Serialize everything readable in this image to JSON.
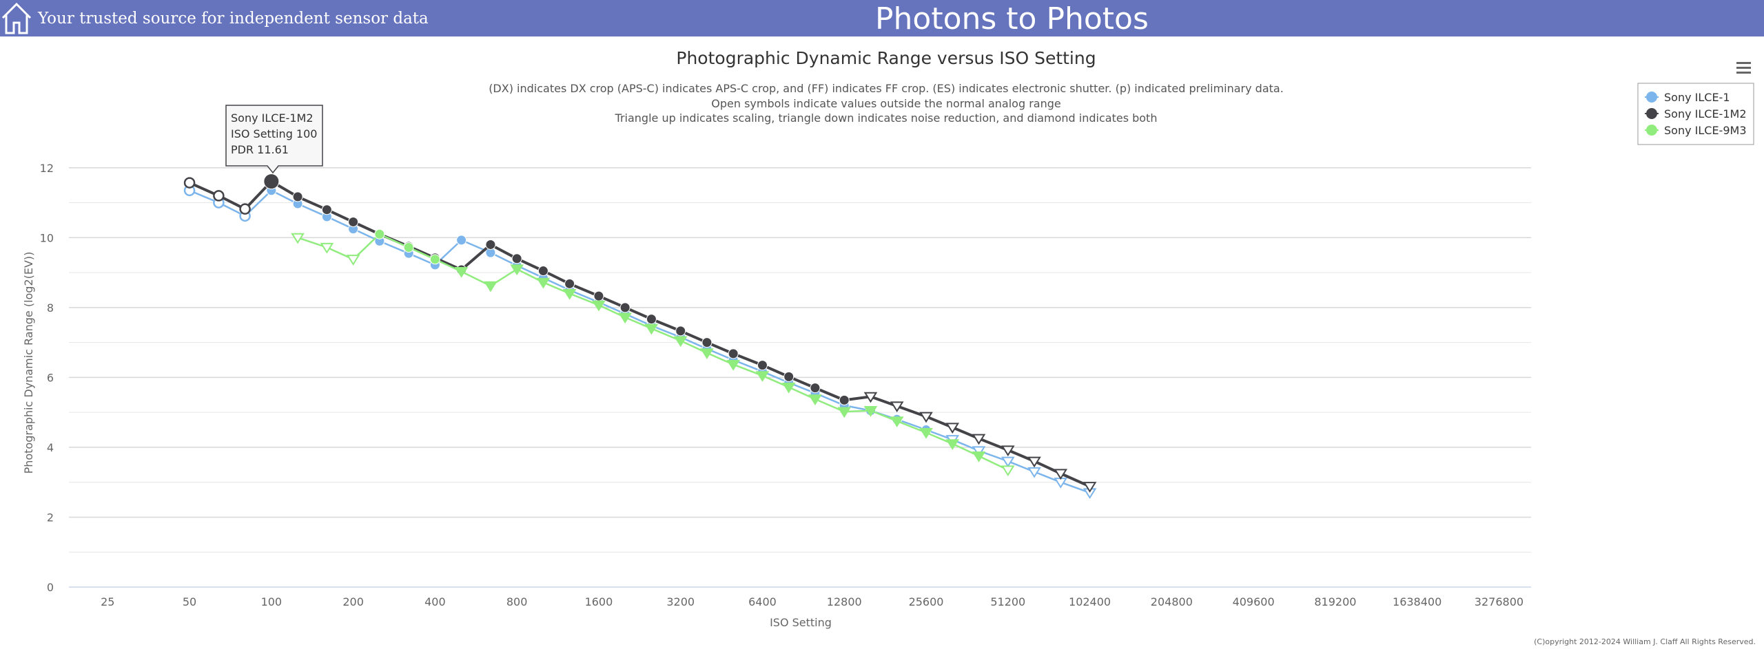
{
  "header": {
    "tagline": "Your trusted source for independent sensor data",
    "site_title": "Photons to Photos",
    "background": "#6673bd",
    "icon": "home-icon"
  },
  "menu": {
    "icon": "hamburger-menu-icon"
  },
  "footer": {
    "copyright": "(C)opyright 2012-2024 William J. Claff All Rights Reserved."
  },
  "tooltip": {
    "series": "Sony ILCE-1M2",
    "line2": "ISO Setting 100",
    "line3": "PDR 11.61"
  },
  "chart_data": {
    "type": "line",
    "title": "Photographic Dynamic Range versus ISO Setting",
    "subtitle": [
      "(DX) indicates DX crop (APS-C) indicates APS-C crop, and (FF) indicates FF crop. (ES) indicates electronic shutter. (p) indicated preliminary data.",
      "Open symbols indicate values outside the normal analog range",
      "Triangle up indicates scaling, triangle down indicates noise reduction, and diamond indicates both"
    ],
    "xlabel": "ISO Setting",
    "ylabel": "Photographic Dynamic Range (log2(EV))",
    "x_scale": "log2",
    "x_ticks": [
      25,
      50,
      100,
      200,
      400,
      800,
      1600,
      3200,
      6400,
      12800,
      25600,
      51200,
      102400,
      204800,
      409600,
      819200,
      1638400,
      3276800
    ],
    "x_range": [
      18,
      4300000
    ],
    "y_ticks": [
      0,
      2,
      4,
      6,
      8,
      10,
      12
    ],
    "ylim": [
      0,
      13
    ],
    "grid": true,
    "legend_position": "top-right",
    "series": [
      {
        "name": "Sony ILCE-1",
        "color": "#7cb5ec",
        "marker": "circle",
        "points": [
          {
            "x": 50,
            "y": 11.35,
            "symbol": "circle-open"
          },
          {
            "x": 64,
            "y": 11.0,
            "symbol": "circle-open"
          },
          {
            "x": 80,
            "y": 10.62,
            "symbol": "circle-open"
          },
          {
            "x": 100,
            "y": 11.35,
            "symbol": "circle"
          },
          {
            "x": 125,
            "y": 10.97,
            "symbol": "circle"
          },
          {
            "x": 160,
            "y": 10.6,
            "symbol": "circle"
          },
          {
            "x": 200,
            "y": 10.25,
            "symbol": "circle"
          },
          {
            "x": 250,
            "y": 9.9,
            "symbol": "circle"
          },
          {
            "x": 320,
            "y": 9.55,
            "symbol": "circle"
          },
          {
            "x": 400,
            "y": 9.22,
            "symbol": "circle"
          },
          {
            "x": 500,
            "y": 9.93,
            "symbol": "circle"
          },
          {
            "x": 640,
            "y": 9.57,
            "symbol": "circle"
          },
          {
            "x": 800,
            "y": 9.2,
            "symbol": "circle"
          },
          {
            "x": 1000,
            "y": 8.85,
            "symbol": "circle"
          },
          {
            "x": 1250,
            "y": 8.5,
            "symbol": "circle"
          },
          {
            "x": 1600,
            "y": 8.15,
            "symbol": "circle"
          },
          {
            "x": 2000,
            "y": 7.82,
            "symbol": "circle"
          },
          {
            "x": 2500,
            "y": 7.48,
            "symbol": "circle"
          },
          {
            "x": 3200,
            "y": 7.15,
            "symbol": "circle"
          },
          {
            "x": 4000,
            "y": 6.82,
            "symbol": "circle"
          },
          {
            "x": 5000,
            "y": 6.5,
            "symbol": "circle"
          },
          {
            "x": 6400,
            "y": 6.17,
            "symbol": "circle"
          },
          {
            "x": 8000,
            "y": 5.85,
            "symbol": "circle"
          },
          {
            "x": 10000,
            "y": 5.55,
            "symbol": "circle"
          },
          {
            "x": 12800,
            "y": 5.2,
            "symbol": "circle"
          },
          {
            "x": 16000,
            "y": 5.05,
            "symbol": "circle"
          },
          {
            "x": 20000,
            "y": 4.8,
            "symbol": "circle"
          },
          {
            "x": 25600,
            "y": 4.5,
            "symbol": "circle"
          },
          {
            "x": 32000,
            "y": 4.22,
            "symbol": "triangle-down-open"
          },
          {
            "x": 40000,
            "y": 3.9,
            "symbol": "triangle-down-open"
          },
          {
            "x": 51200,
            "y": 3.6,
            "symbol": "triangle-down-open"
          },
          {
            "x": 64000,
            "y": 3.3,
            "symbol": "triangle-down-open"
          },
          {
            "x": 80000,
            "y": 3.0,
            "symbol": "triangle-down-open"
          },
          {
            "x": 102400,
            "y": 2.7,
            "symbol": "triangle-down-open"
          }
        ]
      },
      {
        "name": "Sony ILCE-1M2",
        "color": "#434348",
        "marker": "circle",
        "points": [
          {
            "x": 50,
            "y": 11.57,
            "symbol": "circle-open"
          },
          {
            "x": 64,
            "y": 11.2,
            "symbol": "circle-open"
          },
          {
            "x": 80,
            "y": 10.82,
            "symbol": "circle-open"
          },
          {
            "x": 100,
            "y": 11.61,
            "symbol": "circle"
          },
          {
            "x": 125,
            "y": 11.17,
            "symbol": "circle"
          },
          {
            "x": 160,
            "y": 10.8,
            "symbol": "circle"
          },
          {
            "x": 200,
            "y": 10.45,
            "symbol": "circle"
          },
          {
            "x": 250,
            "y": 10.1,
            "symbol": "circle"
          },
          {
            "x": 320,
            "y": 9.75,
            "symbol": "circle"
          },
          {
            "x": 400,
            "y": 9.42,
            "symbol": "circle"
          },
          {
            "x": 500,
            "y": 9.08,
            "symbol": "circle"
          },
          {
            "x": 640,
            "y": 9.8,
            "symbol": "circle"
          },
          {
            "x": 800,
            "y": 9.4,
            "symbol": "circle"
          },
          {
            "x": 1000,
            "y": 9.05,
            "symbol": "circle"
          },
          {
            "x": 1250,
            "y": 8.68,
            "symbol": "circle"
          },
          {
            "x": 1600,
            "y": 8.33,
            "symbol": "circle"
          },
          {
            "x": 2000,
            "y": 8.0,
            "symbol": "circle"
          },
          {
            "x": 2500,
            "y": 7.67,
            "symbol": "circle"
          },
          {
            "x": 3200,
            "y": 7.33,
            "symbol": "circle"
          },
          {
            "x": 4000,
            "y": 7.0,
            "symbol": "circle"
          },
          {
            "x": 5000,
            "y": 6.68,
            "symbol": "circle"
          },
          {
            "x": 6400,
            "y": 6.35,
            "symbol": "circle"
          },
          {
            "x": 8000,
            "y": 6.02,
            "symbol": "circle"
          },
          {
            "x": 10000,
            "y": 5.7,
            "symbol": "circle"
          },
          {
            "x": 12800,
            "y": 5.35,
            "symbol": "circle"
          },
          {
            "x": 16000,
            "y": 5.45,
            "symbol": "triangle-down-open"
          },
          {
            "x": 20000,
            "y": 5.18,
            "symbol": "triangle-down-open"
          },
          {
            "x": 25600,
            "y": 4.88,
            "symbol": "triangle-down-open"
          },
          {
            "x": 32000,
            "y": 4.57,
            "symbol": "triangle-down-open"
          },
          {
            "x": 40000,
            "y": 4.25,
            "symbol": "triangle-down-open"
          },
          {
            "x": 51200,
            "y": 3.92,
            "symbol": "triangle-down-open"
          },
          {
            "x": 64000,
            "y": 3.6,
            "symbol": "triangle-down-open"
          },
          {
            "x": 80000,
            "y": 3.25,
            "symbol": "triangle-down-open"
          },
          {
            "x": 102400,
            "y": 2.88,
            "symbol": "triangle-down-open"
          }
        ]
      },
      {
        "name": "Sony ILCE-9M3",
        "color": "#90ed7d",
        "marker": "circle",
        "points": [
          {
            "x": 125,
            "y": 10.0,
            "symbol": "triangle-down-open"
          },
          {
            "x": 160,
            "y": 9.72,
            "symbol": "triangle-down-open"
          },
          {
            "x": 200,
            "y": 9.38,
            "symbol": "triangle-down-open"
          },
          {
            "x": 250,
            "y": 10.1,
            "symbol": "circle"
          },
          {
            "x": 320,
            "y": 9.72,
            "symbol": "circle"
          },
          {
            "x": 400,
            "y": 9.38,
            "symbol": "circle"
          },
          {
            "x": 500,
            "y": 9.03,
            "symbol": "triangle-down"
          },
          {
            "x": 640,
            "y": 8.62,
            "symbol": "triangle-down"
          },
          {
            "x": 800,
            "y": 9.1,
            "symbol": "triangle-down"
          },
          {
            "x": 1000,
            "y": 8.72,
            "symbol": "triangle-down"
          },
          {
            "x": 1250,
            "y": 8.4,
            "symbol": "triangle-down"
          },
          {
            "x": 1600,
            "y": 8.07,
            "symbol": "triangle-down"
          },
          {
            "x": 2000,
            "y": 7.72,
            "symbol": "triangle-down"
          },
          {
            "x": 2500,
            "y": 7.4,
            "symbol": "triangle-down"
          },
          {
            "x": 3200,
            "y": 7.05,
            "symbol": "triangle-down"
          },
          {
            "x": 4000,
            "y": 6.7,
            "symbol": "triangle-down"
          },
          {
            "x": 5000,
            "y": 6.37,
            "symbol": "triangle-down"
          },
          {
            "x": 6400,
            "y": 6.05,
            "symbol": "triangle-down"
          },
          {
            "x": 8000,
            "y": 5.72,
            "symbol": "triangle-down"
          },
          {
            "x": 10000,
            "y": 5.38,
            "symbol": "triangle-down"
          },
          {
            "x": 12800,
            "y": 5.02,
            "symbol": "triangle-down"
          },
          {
            "x": 16000,
            "y": 5.05,
            "symbol": "triangle-down"
          },
          {
            "x": 20000,
            "y": 4.75,
            "symbol": "triangle-down"
          },
          {
            "x": 25600,
            "y": 4.42,
            "symbol": "triangle-down"
          },
          {
            "x": 32000,
            "y": 4.1,
            "symbol": "triangle-down"
          },
          {
            "x": 40000,
            "y": 3.75,
            "symbol": "triangle-down"
          },
          {
            "x": 51200,
            "y": 3.35,
            "symbol": "triangle-down-open"
          }
        ]
      }
    ]
  }
}
